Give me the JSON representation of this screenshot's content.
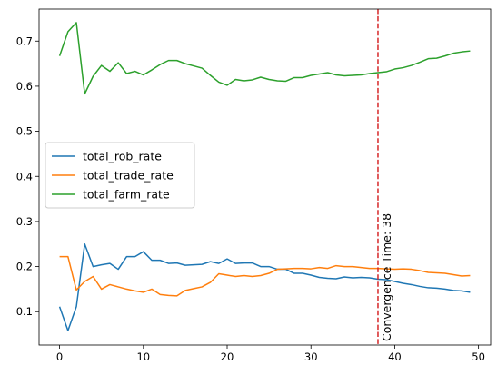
{
  "chart_data": {
    "type": "line",
    "title": "",
    "xlabel": "",
    "ylabel": "",
    "xlim": [
      -2.45,
      51.45
    ],
    "ylim": [
      0.026,
      0.771
    ],
    "xticks": [
      0,
      10,
      20,
      30,
      40,
      50
    ],
    "yticks": [
      0.1,
      0.2,
      0.3,
      0.4,
      0.5,
      0.6,
      0.7
    ],
    "grid": false,
    "legend_position": "center-left",
    "x": [
      0,
      1,
      2,
      3,
      4,
      5,
      6,
      7,
      8,
      9,
      10,
      11,
      12,
      13,
      14,
      15,
      16,
      17,
      18,
      19,
      20,
      21,
      22,
      23,
      24,
      25,
      26,
      27,
      28,
      29,
      30,
      31,
      32,
      33,
      34,
      35,
      36,
      37,
      38,
      39,
      40,
      41,
      42,
      43,
      44,
      45,
      46,
      47,
      48,
      49
    ],
    "series": [
      {
        "name": "total_rob_rate",
        "color": "#1f77b4",
        "values": [
          0.111,
          0.058,
          0.111,
          0.25,
          0.2,
          0.204,
          0.207,
          0.194,
          0.222,
          0.222,
          0.233,
          0.214,
          0.214,
          0.207,
          0.208,
          0.203,
          0.204,
          0.205,
          0.211,
          0.207,
          0.217,
          0.207,
          0.208,
          0.208,
          0.2,
          0.2,
          0.194,
          0.194,
          0.185,
          0.185,
          0.181,
          0.176,
          0.174,
          0.173,
          0.177,
          0.175,
          0.176,
          0.175,
          0.172,
          0.171,
          0.167,
          0.163,
          0.16,
          0.156,
          0.153,
          0.152,
          0.15,
          0.147,
          0.146,
          0.143
        ]
      },
      {
        "name": "total_trade_rate",
        "color": "#ff7f0e",
        "values": [
          0.222,
          0.222,
          0.148,
          0.167,
          0.178,
          0.15,
          0.16,
          0.155,
          0.15,
          0.146,
          0.143,
          0.15,
          0.138,
          0.136,
          0.135,
          0.147,
          0.151,
          0.155,
          0.165,
          0.184,
          0.181,
          0.178,
          0.18,
          0.178,
          0.18,
          0.185,
          0.194,
          0.195,
          0.196,
          0.196,
          0.195,
          0.198,
          0.196,
          0.202,
          0.2,
          0.2,
          0.198,
          0.196,
          0.196,
          0.195,
          0.194,
          0.195,
          0.194,
          0.191,
          0.187,
          0.186,
          0.185,
          0.182,
          0.179,
          0.18
        ]
      },
      {
        "name": "total_farm_rate",
        "color": "#2ca02c",
        "values": [
          0.667,
          0.721,
          0.741,
          0.583,
          0.622,
          0.646,
          0.633,
          0.652,
          0.628,
          0.633,
          0.625,
          0.636,
          0.648,
          0.657,
          0.657,
          0.65,
          0.645,
          0.64,
          0.624,
          0.609,
          0.602,
          0.615,
          0.612,
          0.614,
          0.62,
          0.615,
          0.612,
          0.611,
          0.619,
          0.619,
          0.624,
          0.627,
          0.63,
          0.625,
          0.623,
          0.624,
          0.625,
          0.628,
          0.63,
          0.632,
          0.638,
          0.641,
          0.646,
          0.653,
          0.661,
          0.662,
          0.667,
          0.673,
          0.676,
          0.678
        ]
      }
    ],
    "annotations": [
      {
        "type": "vline",
        "x": 38,
        "color": "#d62728",
        "style": "dashed",
        "label": "Convergence Time: 38"
      }
    ]
  }
}
